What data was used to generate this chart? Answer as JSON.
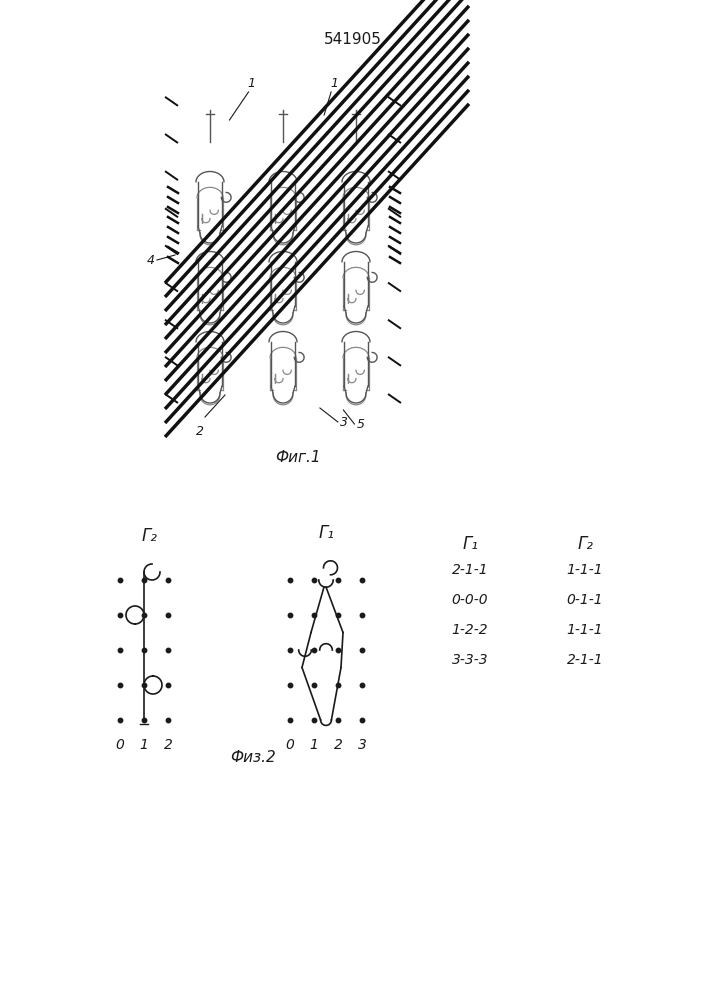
{
  "patent_number": "541905",
  "fig1_caption": "Фиг.1",
  "fig2_caption": "Физ.2",
  "background_color": "#ffffff",
  "line_color": "#1a1a1a",
  "fig2_left_title": "Γ₂",
  "fig2_right_title": "Γ₁",
  "fig2_left_xlabels": [
    "2",
    "1",
    "0"
  ],
  "fig2_right_xlabels": [
    "3",
    "2",
    "1",
    "0"
  ],
  "col_g1_title": "Γ₁",
  "col_g2_title": "Γ₂",
  "col_g1_values": [
    "2-1-1",
    "0-0-0",
    "1-2-2",
    "3-3-3"
  ],
  "col_g2_values": [
    "1-1-1",
    "0-1-1",
    "1-1-1",
    "2-1-1"
  ]
}
